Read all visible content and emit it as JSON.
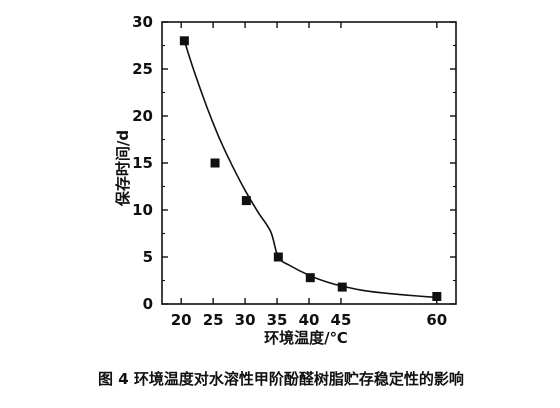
{
  "chart_data": {
    "type": "scatter",
    "title": "",
    "caption": "图 4  环境温度对水溶性甲阶酚醛树脂贮存稳定性的影响",
    "xlabel": "环境温度/℃",
    "ylabel": "保存时间/d",
    "xlim": [
      17,
      63
    ],
    "ylim": [
      0,
      30
    ],
    "x_ticks": [
      20,
      25,
      30,
      35,
      40,
      45,
      60
    ],
    "y_ticks": [
      0,
      5,
      10,
      15,
      20,
      25,
      30
    ],
    "grid": false,
    "legend": "none",
    "marker": "square",
    "color": "#111111",
    "points": [
      {
        "x": 20.5,
        "y": 28
      },
      {
        "x": 25.3,
        "y": 15
      },
      {
        "x": 30.2,
        "y": 11
      },
      {
        "x": 35.2,
        "y": 5
      },
      {
        "x": 40.2,
        "y": 2.8
      },
      {
        "x": 45.2,
        "y": 1.8
      },
      {
        "x": 60,
        "y": 0.8
      }
    ],
    "fit_curve": [
      [
        20.5,
        28
      ],
      [
        22,
        24.8
      ],
      [
        24,
        21.0
      ],
      [
        26,
        17.6
      ],
      [
        28,
        14.7
      ],
      [
        30,
        12.1
      ],
      [
        32,
        9.8
      ],
      [
        34,
        7.7
      ],
      [
        35.2,
        5.0
      ],
      [
        37,
        4.1
      ],
      [
        40.2,
        3.0
      ],
      [
        43,
        2.3
      ],
      [
        45.2,
        1.9
      ],
      [
        48,
        1.5
      ],
      [
        52,
        1.15
      ],
      [
        56,
        0.9
      ],
      [
        60,
        0.7
      ]
    ]
  }
}
